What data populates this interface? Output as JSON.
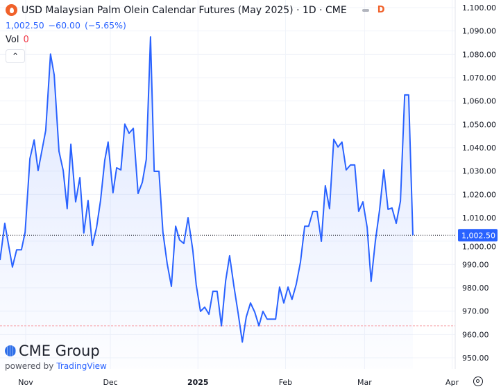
{
  "header": {
    "title": "USD Malaysian Palm Olein Calendar Futures (May 2025) · 1D · CME",
    "status_letter": "D",
    "last_price": "1,002.50",
    "change": "−60.00",
    "change_pct": "(−5.65%)",
    "vol_label": "Vol",
    "vol_value": "0"
  },
  "branding": {
    "name": "CME Group",
    "powered_by": "powered by",
    "platform": "TradingView"
  },
  "colors": {
    "line": "#2962ff",
    "accent": "#f0612a",
    "grid": "#f0f3fa"
  },
  "chart_data": {
    "type": "line",
    "title": "USD Malaysian Palm Olein Calendar Futures (May 2025)",
    "x_unit": "days since 2024-11-01",
    "x": [
      -9.1,
      -7.4,
      -4.7,
      -3.2,
      -1.5,
      -0.2,
      1.5,
      3,
      4.4,
      5.9,
      7.1,
      8.8,
      10.1,
      11.8,
      13.3,
      14.7,
      16,
      17.7,
      19.2,
      20.6,
      22.1,
      23.6,
      25.1,
      26.5,
      28,
      29.2,
      30.9,
      32.2,
      33.7,
      35.1,
      36.6,
      38.1,
      39.8,
      41.3,
      42.7,
      44.2,
      45.5,
      47.2,
      48.6,
      50.1,
      51.6,
      53.1,
      54.5,
      56,
      57.5,
      59.2,
      60.4,
      61.9,
      63.4,
      64.9,
      66.3,
      67.8,
      69.3,
      70.8,
      72.2,
      73.7,
      75.2,
      76.7,
      78.1,
      79.6,
      81.1,
      82.6,
      84,
      85.5,
      87,
      88.5,
      89.9,
      91.4,
      92.9,
      94.3,
      95.8,
      97.3,
      98.8,
      100.2,
      101.7,
      103.2,
      104.7,
      106.1,
      107.6,
      109.1,
      110.6,
      112,
      113.5,
      115,
      116.5,
      117.9,
      119.4,
      120.9,
      122.3,
      123.8,
      125.3,
      126.8,
      128.3,
      129.7,
      131.2,
      132.7,
      134.2,
      135.6,
      137.1
    ],
    "values": [
      991.9,
      1007.6,
      988.9,
      996.3,
      996.3,
      1003.8,
      1035.3,
      1043.3,
      1030.2,
      1039.7,
      1047.4,
      1080.1,
      1071.2,
      1038.5,
      1030.2,
      1013.9,
      1041.5,
      1016.8,
      1027.2,
      1003.5,
      1017.4,
      998.1,
      1005.9,
      1017.4,
      1034.7,
      1042.4,
      1020.7,
      1031.4,
      1030.5,
      1050.1,
      1046.2,
      1048.3,
      1020.4,
      1025.2,
      1035,
      1087.5,
      1029.9,
      1029.9,
      1003.8,
      990.4,
      980.6,
      1006.4,
      1000.5,
      999,
      1010,
      996,
      981.2,
      969.9,
      971.7,
      968.7,
      978.5,
      978.5,
      963.7,
      983,
      993.7,
      980.9,
      969.3,
      956.8,
      967.5,
      973.5,
      969.6,
      963.7,
      969.9,
      966.6,
      966.6,
      966.6,
      980.3,
      973.5,
      980.3,
      975,
      981.5,
      991,
      1006.4,
      1006.4,
      1012.7,
      1012.7,
      999.9,
      1023.7,
      1013.9,
      1043.6,
      1040.3,
      1042.4,
      1030.5,
      1032.6,
      1032.6,
      1012.7,
      1016.8,
      1005.9,
      982.7,
      999.9,
      1013.3,
      1030.5,
      1013.6,
      1014.2,
      1007.6,
      1017.1,
      1062.6,
      1062.6,
      1002.5
    ],
    "ylim": [
      946,
      1101
    ],
    "y_ticks": [
      1100,
      1090,
      1080,
      1070,
      1060,
      1050,
      1040,
      1030,
      1020,
      1010,
      1000,
      990,
      980,
      970,
      960,
      950
    ],
    "y_tick_labels": [
      "1,100.00",
      "1,090.00",
      "1,080.00",
      "1,070.00",
      "1,060.00",
      "1,050.00",
      "1,040.00",
      "1,030.00",
      "1,020.00",
      "1,010.00",
      "1,000.00",
      "990.00",
      "980.00",
      "970.00",
      "960.00",
      "950.00"
    ],
    "x_ticks": [
      0,
      30,
      61,
      92,
      120,
      151
    ],
    "x_tick_labels": [
      "Nov",
      "Dec",
      "2025",
      "Feb",
      "Mar",
      "Apr"
    ],
    "last_value_label": "1,002.50",
    "reference_line": 963.7,
    "grid": true
  }
}
